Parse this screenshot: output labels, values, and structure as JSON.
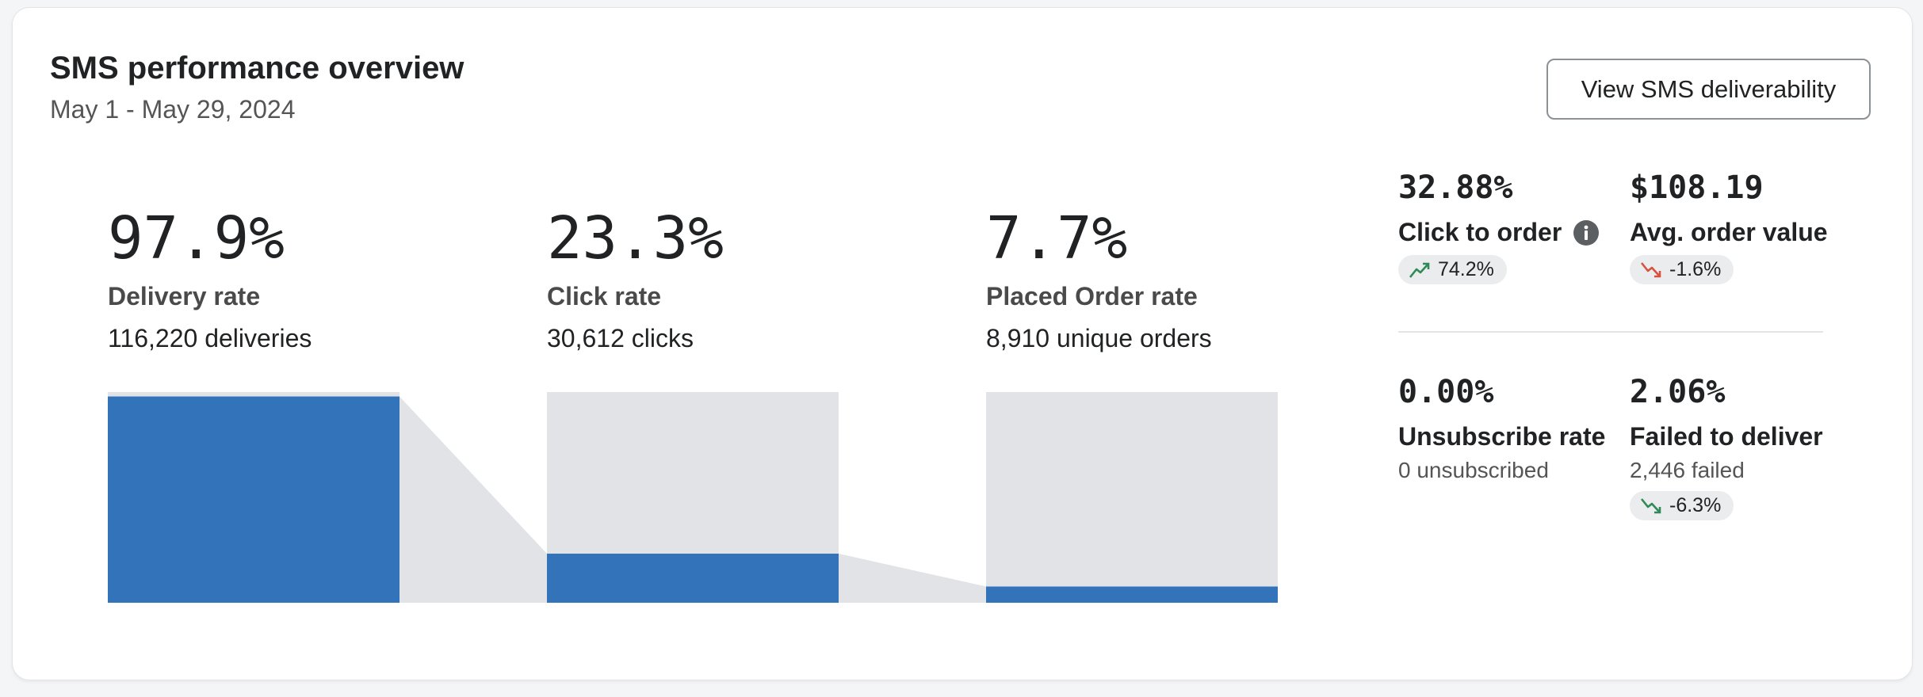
{
  "header": {
    "title": "SMS performance overview",
    "date_range": "May 1 - May 29, 2024",
    "button": "View SMS deliverability"
  },
  "funnel": {
    "ylim": [
      0,
      100
    ],
    "color": "#3273b9",
    "track_color": "#e1e3e6",
    "stages": [
      {
        "value": 97.9,
        "value_label": "97.9%",
        "label": "Delivery rate",
        "detail": "116,220 deliveries"
      },
      {
        "value": 23.3,
        "value_label": "23.3%",
        "label": "Click rate",
        "detail": "30,612 clicks"
      },
      {
        "value": 7.7,
        "value_label": "7.7%",
        "label": "Placed Order rate",
        "detail": "8,910 unique orders"
      }
    ]
  },
  "metrics": [
    {
      "value": "32.88%",
      "label": "Click to order",
      "info_icon": true,
      "change": "74.2%",
      "trend": "up",
      "trend_color": "#2e8b57"
    },
    {
      "value": "$108.19",
      "label": "Avg. order value",
      "change": "-1.6%",
      "trend": "down",
      "trend_color": "#d9503f"
    },
    {
      "value": "0.00%",
      "label": "Unsubscribe rate",
      "detail": "0 unsubscribed"
    },
    {
      "value": "2.06%",
      "label": "Failed to deliver",
      "detail": "2,446 failed",
      "change": "-6.3%",
      "trend": "down",
      "trend_color": "#2e8b57"
    }
  ]
}
